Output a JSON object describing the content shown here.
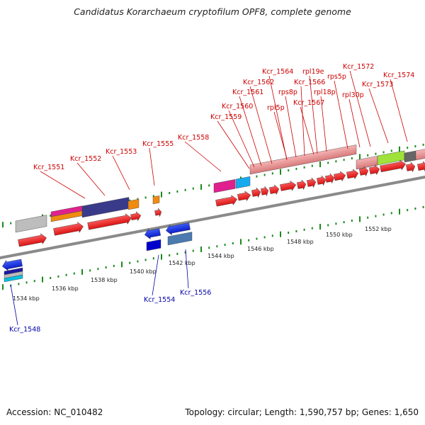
{
  "title": "Candidatus Korarchaeum cryptofilum OPF8, complete genome",
  "footer": {
    "accession": "Accession: NC_010482",
    "summary": "Topology: circular; Length: 1,590,757 bp; Genes: 1,650"
  },
  "colors": {
    "backbone": "#888888",
    "tick": "#1a8a1a",
    "label_plus": "#cc0000",
    "label_minus": "#0000aa",
    "cds_red": "#ee0000",
    "rna_pink": "#e98a8a"
  },
  "scale_labels": [
    "1534 kbp",
    "1536 kbp",
    "1538 kbp",
    "1540 kbp",
    "1542 kbp",
    "1544 kbp",
    "1546 kbp",
    "1548 kbp",
    "1550 kbp",
    "1552 kbp"
  ],
  "gene_labels": {
    "plus": [
      "Kcr_1551",
      "Kcr_1552",
      "Kcr_1553",
      "Kcr_1555",
      "Kcr_1558",
      "Kcr_1559",
      "Kcr_1560",
      "Kcr_1561",
      "Kcr_1562",
      "Kcr_1564",
      "rpl5p",
      "rps8p",
      "Kcr_1566",
      "rpl19e",
      "Kcr_1567",
      "rpl18p",
      "rps5p",
      "rpl30p",
      "Kcr_1572",
      "Kcr_1573",
      "Kcr_1574"
    ],
    "minus": [
      "Kcr_1548",
      "Kcr_1554",
      "Kcr_1556"
    ]
  }
}
